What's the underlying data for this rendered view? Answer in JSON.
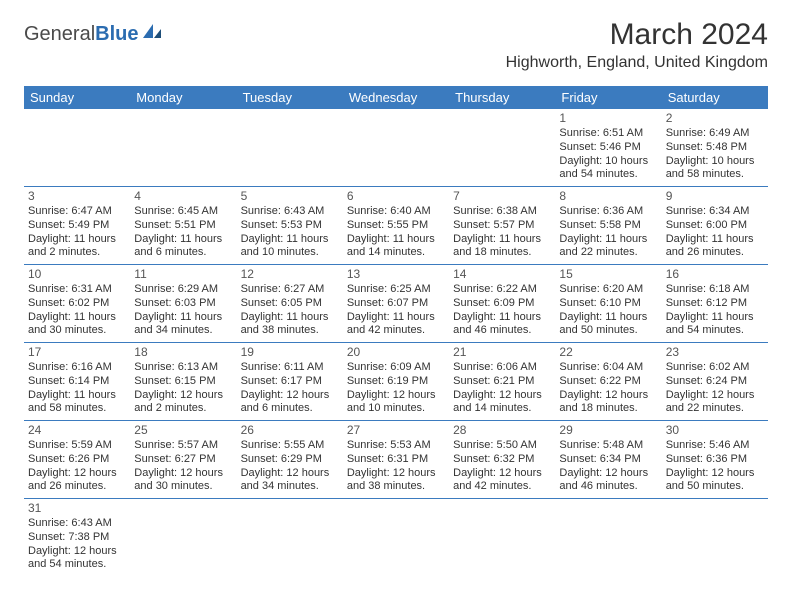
{
  "logo": {
    "text1": "General",
    "text2": "Blue"
  },
  "title": "March 2024",
  "location": "Highworth, England, United Kingdom",
  "colors": {
    "header_bg": "#3b7bbf",
    "header_text": "#ffffff",
    "border": "#3b7bbf",
    "text": "#333333",
    "logo_blue": "#2b6cb0"
  },
  "weekdays": [
    "Sunday",
    "Monday",
    "Tuesday",
    "Wednesday",
    "Thursday",
    "Friday",
    "Saturday"
  ],
  "weeks": [
    [
      null,
      null,
      null,
      null,
      null,
      {
        "day": "1",
        "sunrise": "Sunrise: 6:51 AM",
        "sunset": "Sunset: 5:46 PM",
        "daylight": "Daylight: 10 hours and 54 minutes."
      },
      {
        "day": "2",
        "sunrise": "Sunrise: 6:49 AM",
        "sunset": "Sunset: 5:48 PM",
        "daylight": "Daylight: 10 hours and 58 minutes."
      }
    ],
    [
      {
        "day": "3",
        "sunrise": "Sunrise: 6:47 AM",
        "sunset": "Sunset: 5:49 PM",
        "daylight": "Daylight: 11 hours and 2 minutes."
      },
      {
        "day": "4",
        "sunrise": "Sunrise: 6:45 AM",
        "sunset": "Sunset: 5:51 PM",
        "daylight": "Daylight: 11 hours and 6 minutes."
      },
      {
        "day": "5",
        "sunrise": "Sunrise: 6:43 AM",
        "sunset": "Sunset: 5:53 PM",
        "daylight": "Daylight: 11 hours and 10 minutes."
      },
      {
        "day": "6",
        "sunrise": "Sunrise: 6:40 AM",
        "sunset": "Sunset: 5:55 PM",
        "daylight": "Daylight: 11 hours and 14 minutes."
      },
      {
        "day": "7",
        "sunrise": "Sunrise: 6:38 AM",
        "sunset": "Sunset: 5:57 PM",
        "daylight": "Daylight: 11 hours and 18 minutes."
      },
      {
        "day": "8",
        "sunrise": "Sunrise: 6:36 AM",
        "sunset": "Sunset: 5:58 PM",
        "daylight": "Daylight: 11 hours and 22 minutes."
      },
      {
        "day": "9",
        "sunrise": "Sunrise: 6:34 AM",
        "sunset": "Sunset: 6:00 PM",
        "daylight": "Daylight: 11 hours and 26 minutes."
      }
    ],
    [
      {
        "day": "10",
        "sunrise": "Sunrise: 6:31 AM",
        "sunset": "Sunset: 6:02 PM",
        "daylight": "Daylight: 11 hours and 30 minutes."
      },
      {
        "day": "11",
        "sunrise": "Sunrise: 6:29 AM",
        "sunset": "Sunset: 6:03 PM",
        "daylight": "Daylight: 11 hours and 34 minutes."
      },
      {
        "day": "12",
        "sunrise": "Sunrise: 6:27 AM",
        "sunset": "Sunset: 6:05 PM",
        "daylight": "Daylight: 11 hours and 38 minutes."
      },
      {
        "day": "13",
        "sunrise": "Sunrise: 6:25 AM",
        "sunset": "Sunset: 6:07 PM",
        "daylight": "Daylight: 11 hours and 42 minutes."
      },
      {
        "day": "14",
        "sunrise": "Sunrise: 6:22 AM",
        "sunset": "Sunset: 6:09 PM",
        "daylight": "Daylight: 11 hours and 46 minutes."
      },
      {
        "day": "15",
        "sunrise": "Sunrise: 6:20 AM",
        "sunset": "Sunset: 6:10 PM",
        "daylight": "Daylight: 11 hours and 50 minutes."
      },
      {
        "day": "16",
        "sunrise": "Sunrise: 6:18 AM",
        "sunset": "Sunset: 6:12 PM",
        "daylight": "Daylight: 11 hours and 54 minutes."
      }
    ],
    [
      {
        "day": "17",
        "sunrise": "Sunrise: 6:16 AM",
        "sunset": "Sunset: 6:14 PM",
        "daylight": "Daylight: 11 hours and 58 minutes."
      },
      {
        "day": "18",
        "sunrise": "Sunrise: 6:13 AM",
        "sunset": "Sunset: 6:15 PM",
        "daylight": "Daylight: 12 hours and 2 minutes."
      },
      {
        "day": "19",
        "sunrise": "Sunrise: 6:11 AM",
        "sunset": "Sunset: 6:17 PM",
        "daylight": "Daylight: 12 hours and 6 minutes."
      },
      {
        "day": "20",
        "sunrise": "Sunrise: 6:09 AM",
        "sunset": "Sunset: 6:19 PM",
        "daylight": "Daylight: 12 hours and 10 minutes."
      },
      {
        "day": "21",
        "sunrise": "Sunrise: 6:06 AM",
        "sunset": "Sunset: 6:21 PM",
        "daylight": "Daylight: 12 hours and 14 minutes."
      },
      {
        "day": "22",
        "sunrise": "Sunrise: 6:04 AM",
        "sunset": "Sunset: 6:22 PM",
        "daylight": "Daylight: 12 hours and 18 minutes."
      },
      {
        "day": "23",
        "sunrise": "Sunrise: 6:02 AM",
        "sunset": "Sunset: 6:24 PM",
        "daylight": "Daylight: 12 hours and 22 minutes."
      }
    ],
    [
      {
        "day": "24",
        "sunrise": "Sunrise: 5:59 AM",
        "sunset": "Sunset: 6:26 PM",
        "daylight": "Daylight: 12 hours and 26 minutes."
      },
      {
        "day": "25",
        "sunrise": "Sunrise: 5:57 AM",
        "sunset": "Sunset: 6:27 PM",
        "daylight": "Daylight: 12 hours and 30 minutes."
      },
      {
        "day": "26",
        "sunrise": "Sunrise: 5:55 AM",
        "sunset": "Sunset: 6:29 PM",
        "daylight": "Daylight: 12 hours and 34 minutes."
      },
      {
        "day": "27",
        "sunrise": "Sunrise: 5:53 AM",
        "sunset": "Sunset: 6:31 PM",
        "daylight": "Daylight: 12 hours and 38 minutes."
      },
      {
        "day": "28",
        "sunrise": "Sunrise: 5:50 AM",
        "sunset": "Sunset: 6:32 PM",
        "daylight": "Daylight: 12 hours and 42 minutes."
      },
      {
        "day": "29",
        "sunrise": "Sunrise: 5:48 AM",
        "sunset": "Sunset: 6:34 PM",
        "daylight": "Daylight: 12 hours and 46 minutes."
      },
      {
        "day": "30",
        "sunrise": "Sunrise: 5:46 AM",
        "sunset": "Sunset: 6:36 PM",
        "daylight": "Daylight: 12 hours and 50 minutes."
      }
    ],
    [
      {
        "day": "31",
        "sunrise": "Sunrise: 6:43 AM",
        "sunset": "Sunset: 7:38 PM",
        "daylight": "Daylight: 12 hours and 54 minutes."
      },
      null,
      null,
      null,
      null,
      null,
      null
    ]
  ]
}
